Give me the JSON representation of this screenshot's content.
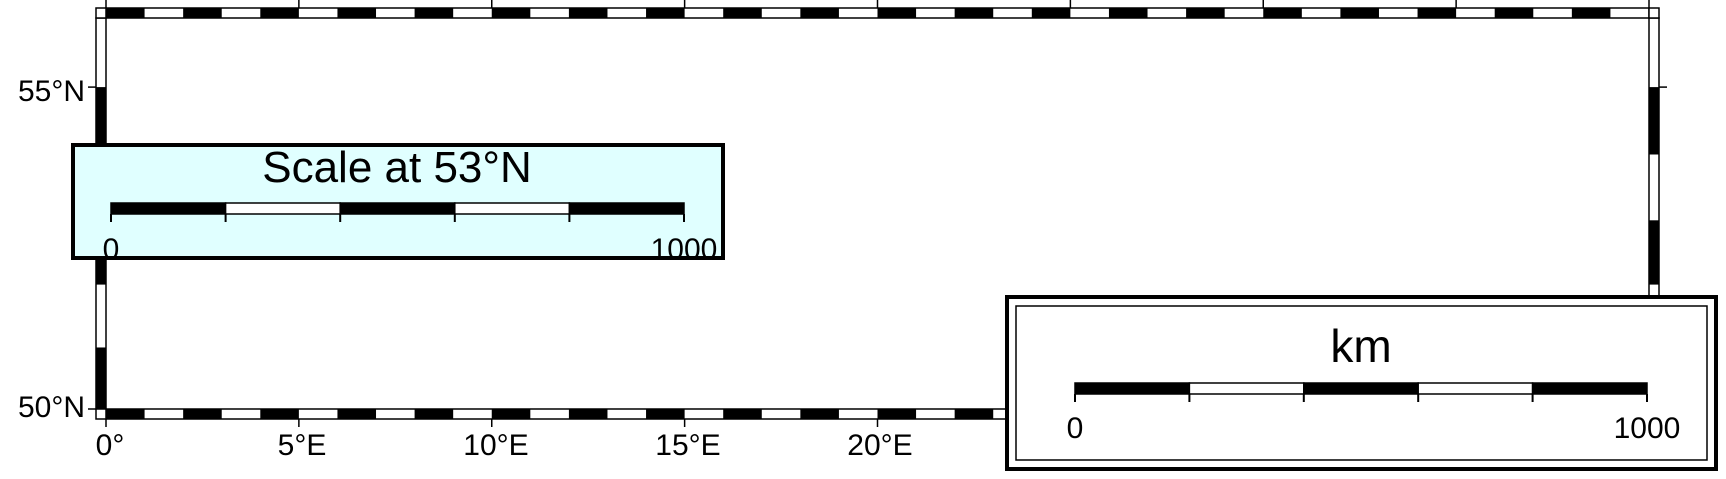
{
  "map": {
    "projection": "Mercator",
    "region": {
      "lon_min": 0,
      "lon_max": 40,
      "lat_min": 50,
      "lat_max": 56
    },
    "frame": "fancy",
    "x_ticks": [
      {
        "lon": 0,
        "label": "0°"
      },
      {
        "lon": 5,
        "label": "5°E"
      },
      {
        "lon": 10,
        "label": "10°E"
      },
      {
        "lon": 15,
        "label": "15°E"
      },
      {
        "lon": 20,
        "label": "20°E"
      }
    ],
    "y_ticks": [
      {
        "lat": 50,
        "label": "50°N"
      },
      {
        "lat": 55,
        "label": "55°N"
      }
    ]
  },
  "scalebar_1": {
    "title": "Scale at 53°N",
    "label_min": "0",
    "label_max": "1000",
    "length_km": 1000,
    "segments": 5,
    "background_color": "#e0ffff"
  },
  "scalebar_2": {
    "unit_label": "km",
    "label_min": "0",
    "label_max": "1000",
    "length_km": 1000,
    "segments": 5,
    "background_color": "#ffffff"
  }
}
